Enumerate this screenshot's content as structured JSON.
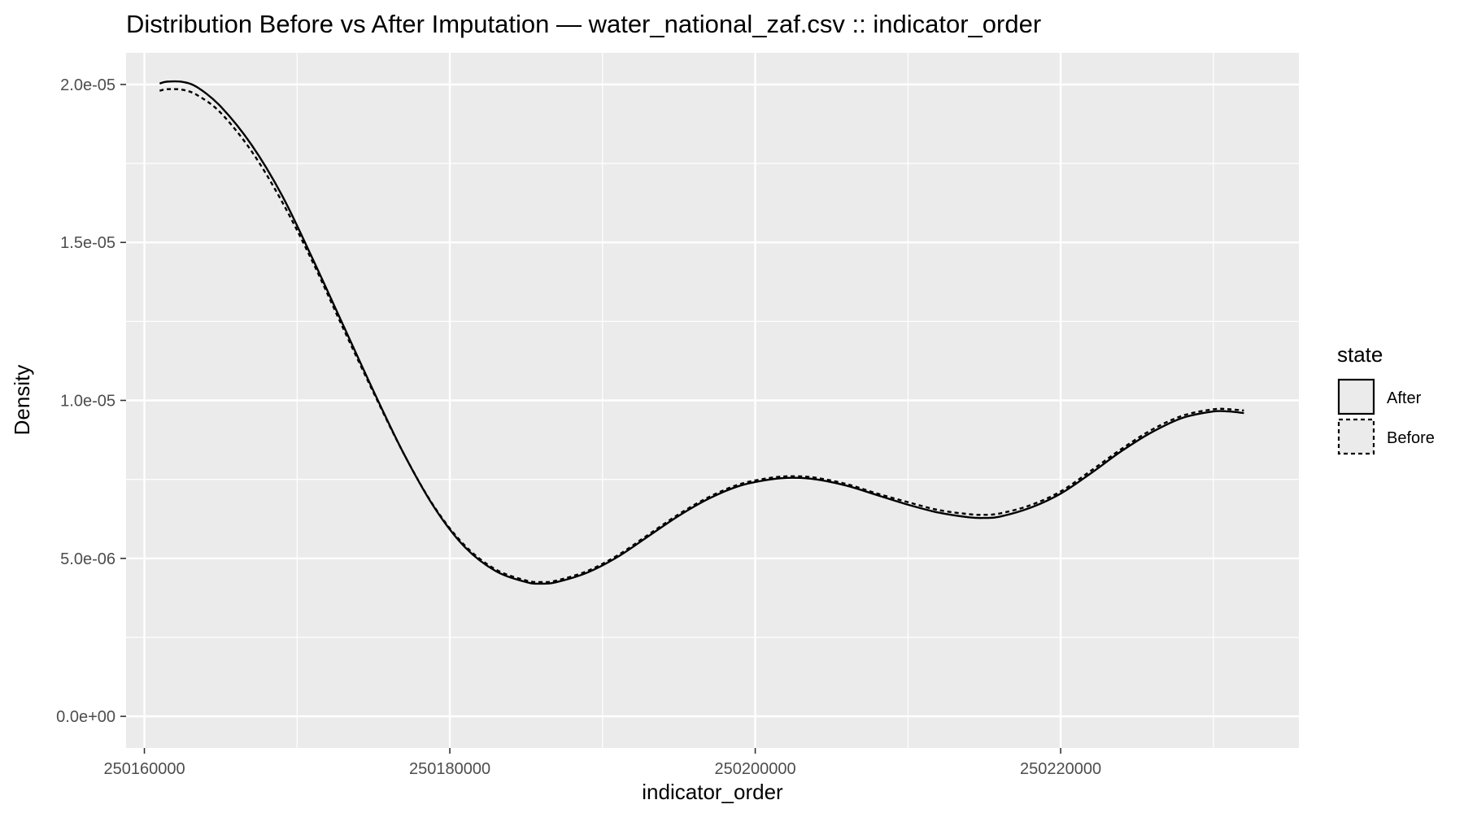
{
  "chart_data": {
    "type": "line",
    "title": "Distribution Before vs After Imputation — water_national_zaf.csv :: indicator_order",
    "xlabel": "indicator_order",
    "ylabel": "Density",
    "xlim": [
      250158800,
      250235600
    ],
    "ylim": [
      -1e-06,
      2.1e-05
    ],
    "x_ticks": [
      250160000,
      250180000,
      250200000,
      250220000
    ],
    "x_tick_labels": [
      "250160000",
      "250180000",
      "250200000",
      "250220000"
    ],
    "x_minor_ticks": [
      250170000,
      250190000,
      250210000,
      250230000
    ],
    "y_ticks": [
      0,
      5e-06,
      1e-05,
      1.5e-05,
      2e-05
    ],
    "y_tick_labels": [
      "0.0e+00",
      "5.0e-06",
      "1.0e-05",
      "1.5e-05",
      "2.0e-05"
    ],
    "y_minor_ticks": [
      2.5e-06,
      7.5e-06,
      1.25e-05,
      1.75e-05
    ],
    "grid": true,
    "panel_background": "#ebebeb",
    "grid_color": "#ffffff",
    "line_color": "#000000",
    "legend": {
      "title": "state",
      "position": "right",
      "entries": [
        {
          "label": "After",
          "linetype": "solid"
        },
        {
          "label": "Before",
          "linetype": "dashed"
        }
      ]
    },
    "series": [
      {
        "name": "After",
        "linetype": "solid",
        "x": [
          250161000,
          250161500,
          250162500,
          250163500,
          250165000,
          250167000,
          250169000,
          250171000,
          250173000,
          250175000,
          250177000,
          250179000,
          250181000,
          250183000,
          250185000,
          250186000,
          250187000,
          250189000,
          250191000,
          250193000,
          250195000,
          250197000,
          250199000,
          250201000,
          250202500,
          250204000,
          250206000,
          250208000,
          250210000,
          250212000,
          250214000,
          250215000,
          250216000,
          250218000,
          250220000,
          250222000,
          250224000,
          250226000,
          250228000,
          250230000,
          250231000,
          250232000
        ],
        "y": [
          2.003e-05,
          2.009e-05,
          2.008e-05,
          1.99e-05,
          1.93e-05,
          1.81e-05,
          1.65e-05,
          1.45e-05,
          1.24e-05,
          1.03e-05,
          8.3e-06,
          6.6e-06,
          5.35e-06,
          4.6e-06,
          4.25e-06,
          4.2e-06,
          4.25e-06,
          4.55e-06,
          5.05e-06,
          5.7e-06,
          6.35e-06,
          6.9e-06,
          7.3e-06,
          7.5e-06,
          7.55e-06,
          7.5e-06,
          7.3e-06,
          7e-06,
          6.7e-06,
          6.45e-06,
          6.3e-06,
          6.28e-06,
          6.32e-06,
          6.6e-06,
          7.05e-06,
          7.7e-06,
          8.4e-06,
          9e-06,
          9.45e-06,
          9.65e-06,
          9.65e-06,
          9.6e-06
        ]
      },
      {
        "name": "Before",
        "linetype": "dashed",
        "x": [
          250161000,
          250161500,
          250162500,
          250163500,
          250165000,
          250167000,
          250169000,
          250171000,
          250173000,
          250175000,
          250177000,
          250179000,
          250181000,
          250183000,
          250185000,
          250186000,
          250187000,
          250189000,
          250191000,
          250193000,
          250195000,
          250197000,
          250199000,
          250201000,
          250202500,
          250204000,
          250206000,
          250208000,
          250210000,
          250212000,
          250214000,
          250215000,
          250216000,
          250218000,
          250220000,
          250222000,
          250224000,
          250226000,
          250228000,
          250230000,
          250231000,
          250232000
        ],
        "y": [
          1.98e-05,
          1.985e-05,
          1.983e-05,
          1.965e-05,
          1.91e-05,
          1.79e-05,
          1.63e-05,
          1.44e-05,
          1.23e-05,
          1.025e-05,
          8.3e-06,
          6.62e-06,
          5.4e-06,
          4.65e-06,
          4.3e-06,
          4.25e-06,
          4.3e-06,
          4.6e-06,
          5.1e-06,
          5.75e-06,
          6.4e-06,
          6.95e-06,
          7.35e-06,
          7.55e-06,
          7.6e-06,
          7.55e-06,
          7.35e-06,
          7.05e-06,
          6.78e-06,
          6.53e-06,
          6.4e-06,
          6.38e-06,
          6.42e-06,
          6.68e-06,
          7.12e-06,
          7.78e-06,
          8.47e-06,
          9.08e-06,
          9.52e-06,
          9.72e-06,
          9.72e-06,
          9.68e-06
        ]
      }
    ]
  }
}
